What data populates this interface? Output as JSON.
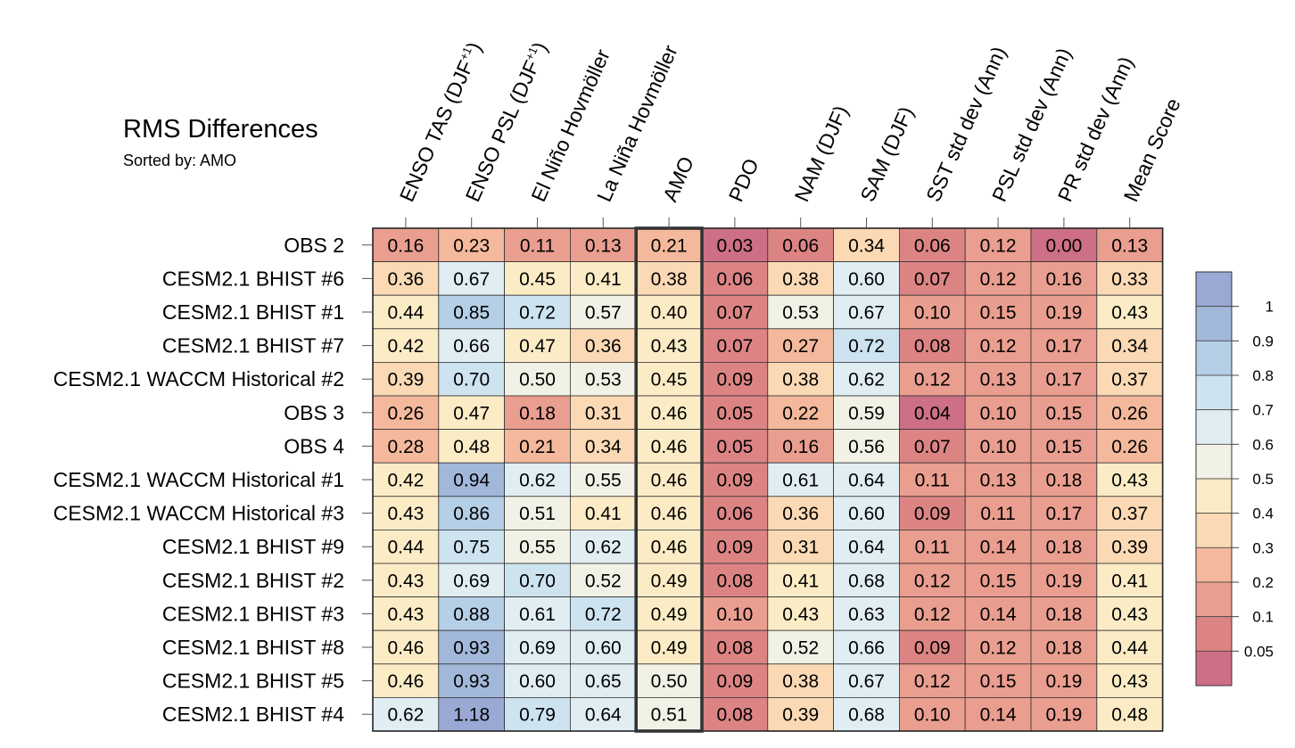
{
  "chart_data": {
    "type": "heatmap",
    "title": "RMS Differences",
    "subtitle": "Sorted by: AMO",
    "highlight_column": "AMO",
    "columns": [
      "ENSO TAS (DJF+1)",
      "ENSO PSL (DJF+1)",
      "El Niño Hovmöller",
      "La Niña Hovmöller",
      "AMO",
      "PDO",
      "NAM (DJF)",
      "SAM (DJF)",
      "SST std dev (Ann)",
      "PSL std dev (Ann)",
      "PR std dev (Ann)",
      "Mean Score"
    ],
    "rows": [
      {
        "label": "OBS 2",
        "values": [
          "0.16",
          "0.23",
          "0.11",
          "0.13",
          "0.21",
          "0.03",
          "0.06",
          "0.34",
          "0.06",
          "0.12",
          "0.00",
          "0.13"
        ]
      },
      {
        "label": "CESM2.1 BHIST #6",
        "values": [
          "0.36",
          "0.67",
          "0.45",
          "0.41",
          "0.38",
          "0.06",
          "0.38",
          "0.60",
          "0.07",
          "0.12",
          "0.16",
          "0.33"
        ]
      },
      {
        "label": "CESM2.1 BHIST #1",
        "values": [
          "0.44",
          "0.85",
          "0.72",
          "0.57",
          "0.40",
          "0.07",
          "0.53",
          "0.67",
          "0.10",
          "0.15",
          "0.19",
          "0.43"
        ]
      },
      {
        "label": "CESM2.1 BHIST #7",
        "values": [
          "0.42",
          "0.66",
          "0.47",
          "0.36",
          "0.43",
          "0.07",
          "0.27",
          "0.72",
          "0.08",
          "0.12",
          "0.17",
          "0.34"
        ]
      },
      {
        "label": "CESM2.1 WACCM Historical #2",
        "values": [
          "0.39",
          "0.70",
          "0.50",
          "0.53",
          "0.45",
          "0.09",
          "0.38",
          "0.62",
          "0.12",
          "0.13",
          "0.17",
          "0.37"
        ]
      },
      {
        "label": "OBS 3",
        "values": [
          "0.26",
          "0.47",
          "0.18",
          "0.31",
          "0.46",
          "0.05",
          "0.22",
          "0.59",
          "0.04",
          "0.10",
          "0.15",
          "0.26"
        ]
      },
      {
        "label": "OBS 4",
        "values": [
          "0.28",
          "0.48",
          "0.21",
          "0.34",
          "0.46",
          "0.05",
          "0.16",
          "0.56",
          "0.07",
          "0.10",
          "0.15",
          "0.26"
        ]
      },
      {
        "label": "CESM2.1 WACCM Historical #1",
        "values": [
          "0.42",
          "0.94",
          "0.62",
          "0.55",
          "0.46",
          "0.09",
          "0.61",
          "0.64",
          "0.11",
          "0.13",
          "0.18",
          "0.43"
        ]
      },
      {
        "label": "CESM2.1 WACCM Historical #3",
        "values": [
          "0.43",
          "0.86",
          "0.51",
          "0.41",
          "0.46",
          "0.06",
          "0.36",
          "0.60",
          "0.09",
          "0.11",
          "0.17",
          "0.37"
        ]
      },
      {
        "label": "CESM2.1 BHIST #9",
        "values": [
          "0.44",
          "0.75",
          "0.55",
          "0.62",
          "0.46",
          "0.09",
          "0.31",
          "0.64",
          "0.11",
          "0.14",
          "0.18",
          "0.39"
        ]
      },
      {
        "label": "CESM2.1 BHIST #2",
        "values": [
          "0.43",
          "0.69",
          "0.70",
          "0.52",
          "0.49",
          "0.08",
          "0.41",
          "0.68",
          "0.12",
          "0.15",
          "0.19",
          "0.41"
        ]
      },
      {
        "label": "CESM2.1 BHIST #3",
        "values": [
          "0.43",
          "0.88",
          "0.61",
          "0.72",
          "0.49",
          "0.10",
          "0.43",
          "0.63",
          "0.12",
          "0.14",
          "0.18",
          "0.43"
        ]
      },
      {
        "label": "CESM2.1 BHIST #8",
        "values": [
          "0.46",
          "0.93",
          "0.69",
          "0.60",
          "0.49",
          "0.08",
          "0.52",
          "0.66",
          "0.09",
          "0.12",
          "0.18",
          "0.44"
        ]
      },
      {
        "label": "CESM2.1 BHIST #5",
        "values": [
          "0.46",
          "0.93",
          "0.60",
          "0.65",
          "0.50",
          "0.09",
          "0.38",
          "0.67",
          "0.12",
          "0.15",
          "0.19",
          "0.43"
        ]
      },
      {
        "label": "CESM2.1 BHIST #4",
        "values": [
          "0.62",
          "1.18",
          "0.79",
          "0.64",
          "0.51",
          "0.08",
          "0.39",
          "0.68",
          "0.10",
          "0.14",
          "0.19",
          "0.48"
        ]
      }
    ],
    "colorbar": {
      "ticks": [
        "1",
        "0.9",
        "0.8",
        "0.7",
        "0.6",
        "0.5",
        "0.4",
        "0.3",
        "0.2",
        "0.1",
        "0.05"
      ],
      "levels": [
        0.05,
        0.1,
        0.2,
        0.3,
        0.4,
        0.5,
        0.6,
        0.7,
        0.8,
        0.9,
        1
      ],
      "colors": [
        "#cd6f85",
        "#dc8484",
        "#ea9e8f",
        "#f4b99c",
        "#fad9b4",
        "#fcecc5",
        "#f2f1e6",
        "#e0eef4",
        "#cde3ef",
        "#b4cfe6",
        "#a2b8da",
        "#9aa8d4"
      ]
    }
  }
}
